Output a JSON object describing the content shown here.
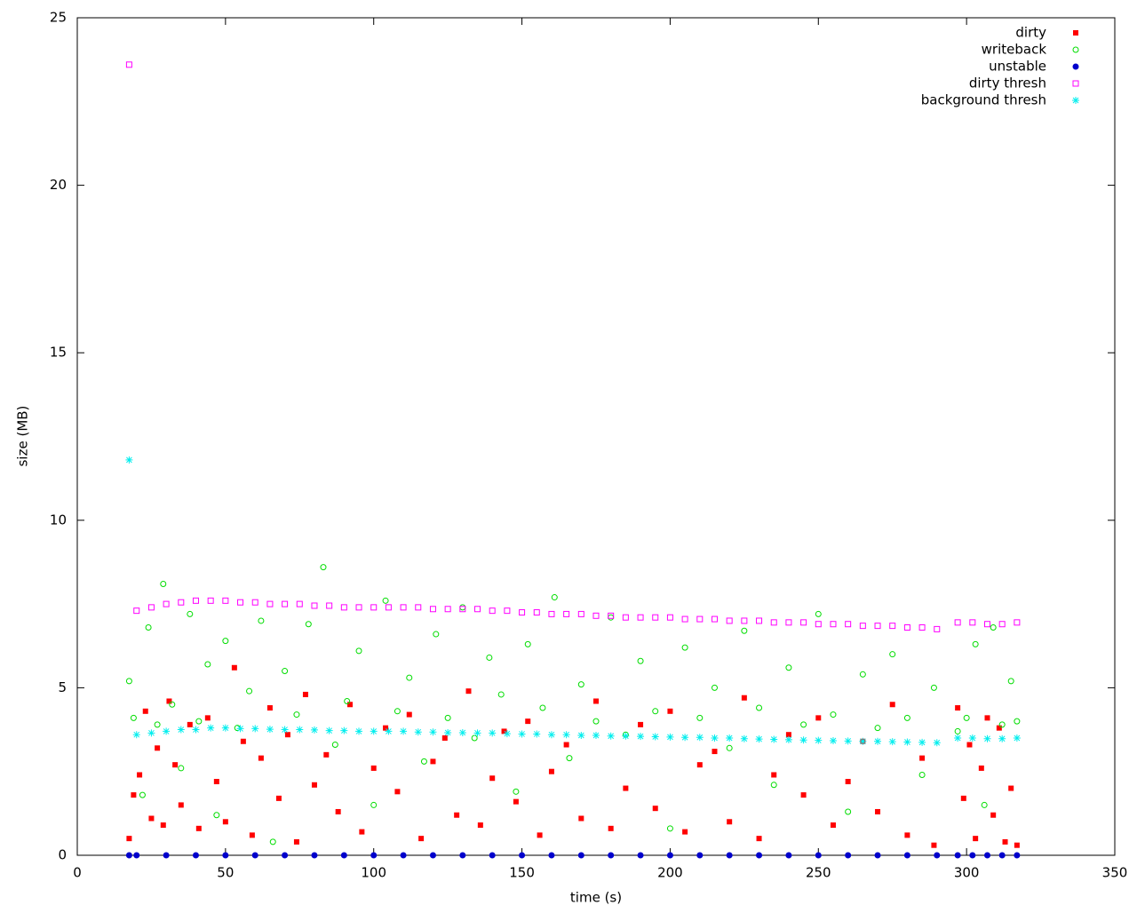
{
  "chart_data": {
    "type": "scatter",
    "x_label": "time (s)",
    "y_label": "size (MB)",
    "xlim": [
      0,
      350
    ],
    "xticks": [
      0,
      50,
      100,
      150,
      200,
      250,
      300,
      350
    ],
    "ylim": [
      0,
      25
    ],
    "yticks": [
      0,
      5,
      10,
      15,
      20,
      25
    ],
    "legend": "top-right",
    "series": [
      {
        "name": "dirty",
        "color": "#ff0000",
        "marker": "filled-square",
        "x": [
          17.5,
          19,
          21,
          23,
          25,
          27,
          29,
          31,
          33,
          35,
          38,
          41,
          44,
          47,
          50,
          53,
          56,
          59,
          62,
          65,
          68,
          71,
          74,
          77,
          80,
          84,
          88,
          92,
          96,
          100,
          104,
          108,
          112,
          116,
          120,
          124,
          128,
          132,
          136,
          140,
          144,
          148,
          152,
          156,
          160,
          165,
          170,
          175,
          180,
          185,
          190,
          195,
          200,
          205,
          210,
          215,
          220,
          225,
          230,
          235,
          240,
          245,
          250,
          255,
          260,
          265,
          270,
          275,
          280,
          285,
          289,
          297,
          299,
          301,
          303,
          305,
          307,
          309,
          311,
          313,
          315,
          317
        ],
        "values": [
          0.5,
          1.8,
          2.4,
          4.3,
          1.1,
          3.2,
          0.9,
          4.6,
          2.7,
          1.5,
          3.9,
          0.8,
          4.1,
          2.2,
          1.0,
          5.6,
          3.4,
          0.6,
          2.9,
          4.4,
          1.7,
          3.6,
          0.4,
          4.8,
          2.1,
          3.0,
          1.3,
          4.5,
          0.7,
          2.6,
          3.8,
          1.9,
          4.2,
          0.5,
          2.8,
          3.5,
          1.2,
          4.9,
          0.9,
          2.3,
          3.7,
          1.6,
          4.0,
          0.6,
          2.5,
          3.3,
          1.1,
          4.6,
          0.8,
          2.0,
          3.9,
          1.4,
          4.3,
          0.7,
          2.7,
          3.1,
          1.0,
          4.7,
          0.5,
          2.4,
          3.6,
          1.8,
          4.1,
          0.9,
          2.2,
          3.4,
          1.3,
          4.5,
          0.6,
          2.9,
          0.3,
          4.4,
          1.7,
          3.3,
          0.5,
          2.6,
          4.1,
          1.2,
          3.8,
          0.4,
          2.0,
          0.3
        ]
      },
      {
        "name": "writeback",
        "color": "#00dd00",
        "marker": "open-circle",
        "x": [
          17.5,
          19,
          22,
          24,
          27,
          29,
          32,
          35,
          38,
          41,
          44,
          47,
          50,
          54,
          58,
          62,
          66,
          70,
          74,
          78,
          83,
          87,
          91,
          95,
          100,
          104,
          108,
          112,
          117,
          121,
          125,
          130,
          134,
          139,
          143,
          148,
          152,
          157,
          161,
          166,
          170,
          175,
          180,
          185,
          190,
          195,
          200,
          205,
          210,
          215,
          220,
          225,
          230,
          235,
          240,
          245,
          250,
          255,
          260,
          265,
          270,
          275,
          280,
          285,
          289,
          297,
          300,
          303,
          306,
          309,
          312,
          315,
          317
        ],
        "values": [
          5.2,
          4.1,
          1.8,
          6.8,
          3.9,
          8.1,
          4.5,
          2.6,
          7.2,
          4.0,
          5.7,
          1.2,
          6.4,
          3.8,
          4.9,
          7.0,
          0.4,
          5.5,
          4.2,
          6.9,
          8.6,
          3.3,
          4.6,
          6.1,
          1.5,
          7.6,
          4.3,
          5.3,
          2.8,
          6.6,
          4.1,
          7.4,
          3.5,
          5.9,
          4.8,
          1.9,
          6.3,
          4.4,
          7.7,
          2.9,
          5.1,
          4.0,
          7.1,
          3.6,
          5.8,
          4.3,
          0.8,
          6.2,
          4.1,
          5.0,
          3.2,
          6.7,
          4.4,
          2.1,
          5.6,
          3.9,
          7.2,
          4.2,
          1.3,
          5.4,
          3.8,
          6.0,
          4.1,
          2.4,
          5.0,
          3.7,
          4.1,
          6.3,
          1.5,
          6.8,
          3.9,
          5.2,
          4.0
        ]
      },
      {
        "name": "unstable",
        "color": "#0000cc",
        "marker": "filled-circle",
        "x": [
          17.5,
          20,
          30,
          40,
          50,
          60,
          70,
          80,
          90,
          100,
          110,
          120,
          130,
          140,
          150,
          160,
          170,
          180,
          190,
          200,
          210,
          220,
          230,
          240,
          250,
          260,
          270,
          280,
          290,
          297,
          302,
          307,
          312,
          317
        ],
        "values": [
          0,
          0,
          0,
          0,
          0,
          0,
          0,
          0,
          0,
          0,
          0,
          0,
          0,
          0,
          0,
          0,
          0,
          0,
          0,
          0,
          0,
          0,
          0,
          0,
          0,
          0,
          0,
          0,
          0,
          0,
          0,
          0,
          0,
          0
        ]
      },
      {
        "name": "dirty thresh",
        "color": "#ff00ff",
        "marker": "open-square",
        "x": [
          17.5,
          20,
          25,
          30,
          35,
          40,
          45,
          50,
          55,
          60,
          65,
          70,
          75,
          80,
          85,
          90,
          95,
          100,
          105,
          110,
          115,
          120,
          125,
          130,
          135,
          140,
          145,
          150,
          155,
          160,
          165,
          170,
          175,
          180,
          185,
          190,
          195,
          200,
          205,
          210,
          215,
          220,
          225,
          230,
          235,
          240,
          245,
          250,
          255,
          260,
          265,
          270,
          275,
          280,
          285,
          290,
          297,
          302,
          307,
          312,
          317
        ],
        "values": [
          23.6,
          7.3,
          7.4,
          7.5,
          7.55,
          7.6,
          7.6,
          7.6,
          7.55,
          7.55,
          7.5,
          7.5,
          7.5,
          7.45,
          7.45,
          7.4,
          7.4,
          7.4,
          7.4,
          7.4,
          7.4,
          7.35,
          7.35,
          7.35,
          7.35,
          7.3,
          7.3,
          7.25,
          7.25,
          7.2,
          7.2,
          7.2,
          7.15,
          7.15,
          7.1,
          7.1,
          7.1,
          7.1,
          7.05,
          7.05,
          7.05,
          7.0,
          7.0,
          7.0,
          6.95,
          6.95,
          6.95,
          6.9,
          6.9,
          6.9,
          6.85,
          6.85,
          6.85,
          6.8,
          6.8,
          6.75,
          6.95,
          6.95,
          6.9,
          6.9,
          6.95
        ]
      },
      {
        "name": "background thresh",
        "color": "#00eeee",
        "marker": "star",
        "x": [
          17.5,
          20,
          25,
          30,
          35,
          40,
          45,
          50,
          55,
          60,
          65,
          70,
          75,
          80,
          85,
          90,
          95,
          100,
          105,
          110,
          115,
          120,
          125,
          130,
          135,
          140,
          145,
          150,
          155,
          160,
          165,
          170,
          175,
          180,
          185,
          190,
          195,
          200,
          205,
          210,
          215,
          220,
          225,
          230,
          235,
          240,
          245,
          250,
          255,
          260,
          265,
          270,
          275,
          280,
          285,
          290,
          297,
          302,
          307,
          312,
          317
        ],
        "values": [
          11.8,
          3.6,
          3.65,
          3.7,
          3.75,
          3.75,
          3.8,
          3.8,
          3.78,
          3.78,
          3.76,
          3.75,
          3.75,
          3.74,
          3.72,
          3.72,
          3.7,
          3.7,
          3.7,
          3.7,
          3.68,
          3.68,
          3.66,
          3.66,
          3.65,
          3.65,
          3.63,
          3.62,
          3.62,
          3.6,
          3.6,
          3.58,
          3.58,
          3.56,
          3.56,
          3.55,
          3.54,
          3.53,
          3.52,
          3.52,
          3.5,
          3.5,
          3.48,
          3.47,
          3.46,
          3.45,
          3.44,
          3.43,
          3.42,
          3.41,
          3.4,
          3.4,
          3.39,
          3.38,
          3.37,
          3.36,
          3.5,
          3.5,
          3.48,
          3.48,
          3.5
        ]
      }
    ]
  }
}
